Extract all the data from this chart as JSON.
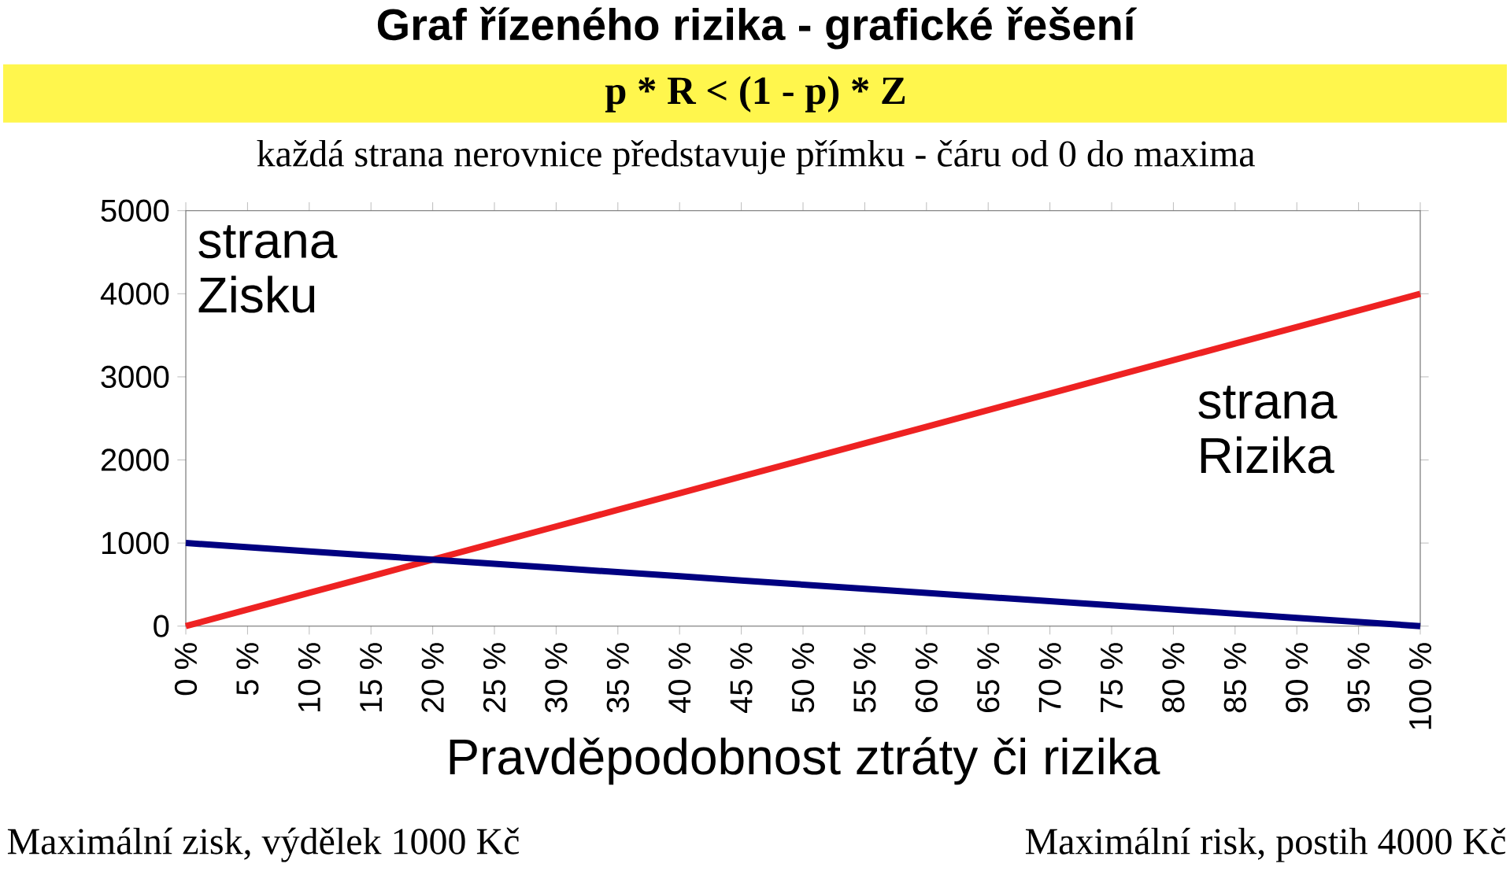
{
  "chart_data": {
    "type": "line",
    "title": "Graf řízeného rizika - grafické řešení",
    "subtitle": "p * R < (1 - p) * Z",
    "xlabel": "Pravděpodobnost ztráty či rizika",
    "categories": [
      "0 %",
      "5 %",
      "10 %",
      "15 %",
      "20 %",
      "25 %",
      "30 %",
      "35 %",
      "40 %",
      "45 %",
      "50 %",
      "55 %",
      "60 %",
      "65 %",
      "70 %",
      "75 %",
      "80 %",
      "85 %",
      "90 %",
      "95 %",
      "100 %"
    ],
    "series": [
      {
        "color": "#ee2222",
        "values": [
          0,
          200,
          400,
          600,
          800,
          1000,
          1200,
          1400,
          1600,
          1800,
          2000,
          2200,
          2400,
          2600,
          2800,
          3000,
          3200,
          3400,
          3600,
          3800,
          4000
        ]
      },
      {
        "color": "#000080",
        "values": [
          1000,
          950,
          900,
          850,
          800,
          750,
          700,
          650,
          600,
          550,
          500,
          450,
          400,
          350,
          300,
          250,
          200,
          150,
          100,
          50,
          0
        ]
      }
    ],
    "ylim": [
      0,
      5000
    ],
    "yticks": [
      0,
      1000,
      2000,
      3000,
      4000,
      5000
    ],
    "grid": false,
    "marker": "none",
    "line_style": "solid",
    "annotations": [
      "každá strana nerovnice představuje přímku - čáru od 0 do maxima",
      "strana Zisku",
      "strana Rizika",
      "Maximální zisk, výdělek 1000 Kč",
      "Maximální risk, postih 4000 Kč"
    ]
  }
}
